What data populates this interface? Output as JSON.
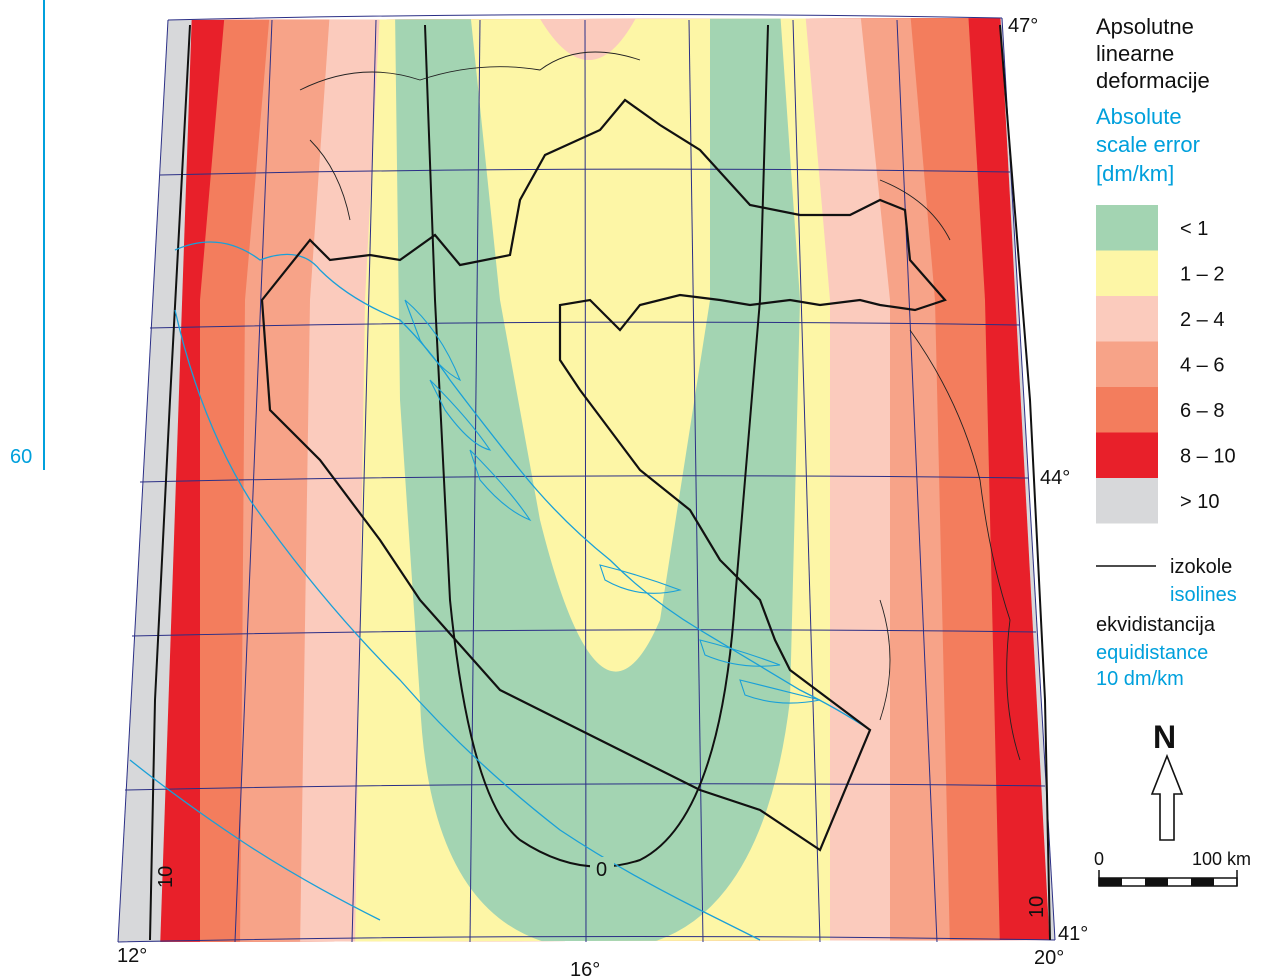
{
  "colors": {
    "lt1": "#a3d4b2",
    "c1to2": "#fdf6a6",
    "c2to4": "#fbcbbd",
    "c4to6": "#f7a388",
    "c6to8": "#f37d5d",
    "c8to10": "#e8202a",
    "gt10": "#d7d8da",
    "graticule": "#2b2f86",
    "coast": "#1aa0d8",
    "border": "#1a1a1a",
    "accent": "#00a0dc"
  },
  "ruler_label": "60",
  "coords": {
    "lon12": "12°",
    "lon16": "16°",
    "lon20": "20°",
    "lat41": "41°",
    "lat44": "44°",
    "lat47": "47°"
  },
  "isoline_labels": {
    "zero": "0",
    "ten_left": "10",
    "ten_right": "10"
  },
  "legend": {
    "title_hr_line1": "Apsolutne",
    "title_hr_line2": "linearne",
    "title_hr_line3": "deformacije",
    "title_en_line1": "Absolute",
    "title_en_line2": "scale error",
    "title_en_line3": "[dm/km]",
    "classes": [
      {
        "label": "< 1",
        "color": "#a3d4b2"
      },
      {
        "label": "1 – 2",
        "color": "#fdf6a6"
      },
      {
        "label": "2 – 4",
        "color": "#fbcbbd"
      },
      {
        "label": "4 – 6",
        "color": "#f7a388"
      },
      {
        "label": "6 – 8",
        "color": "#f37d5d"
      },
      {
        "label": "8 – 10",
        "color": "#e8202a"
      },
      {
        "label": "> 10",
        "color": "#d7d8da"
      }
    ],
    "isolines_hr": "izokole",
    "isolines_en": "isolines",
    "equidistance_hr": "ekvidistancija",
    "equidistance_en_line1": "equidistance",
    "equidistance_en_line2": "10 dm/km"
  },
  "north": {
    "label": "N"
  },
  "scalebar": {
    "start": "0",
    "end": "100 km"
  }
}
